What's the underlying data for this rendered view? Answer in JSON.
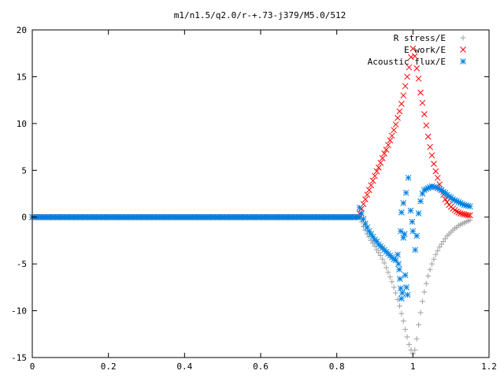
{
  "chart_data": {
    "type": "scatter",
    "title": "m1/n1.5/q2.0/r-+.73-j379/M5.0/512",
    "xlabel": "",
    "ylabel": "",
    "xlim": [
      0,
      1.2
    ],
    "ylim": [
      -15,
      20
    ],
    "x_ticks": [
      0,
      0.2,
      0.4,
      0.6,
      0.8,
      1,
      1.2
    ],
    "x_tick_labels": [
      "0",
      "0.2",
      "0.4",
      "0.6",
      "0.8",
      "1",
      "1.2"
    ],
    "y_ticks": [
      -15,
      -10,
      -5,
      0,
      5,
      10,
      15,
      20
    ],
    "y_tick_labels": [
      "-15",
      "-10",
      "-5",
      "0",
      "5",
      "10",
      "15",
      "20"
    ],
    "legend_position": "top-right",
    "grid": false,
    "series": [
      {
        "name": "R stress/E",
        "marker": "plus",
        "color": "#a0a0a0",
        "flat": {
          "x_start": 0,
          "x_end": 0.86,
          "step": 0.005,
          "y": 0
        },
        "points": [
          [
            0.86,
            0
          ],
          [
            0.865,
            -0.5
          ],
          [
            0.87,
            -1.0
          ],
          [
            0.875,
            -1.4
          ],
          [
            0.88,
            -1.8
          ],
          [
            0.885,
            -2.1
          ],
          [
            0.89,
            -2.5
          ],
          [
            0.895,
            -2.8
          ],
          [
            0.9,
            -3.1
          ],
          [
            0.905,
            -3.5
          ],
          [
            0.91,
            -3.8
          ],
          [
            0.915,
            -4.1
          ],
          [
            0.92,
            -4.5
          ],
          [
            0.925,
            -4.9
          ],
          [
            0.93,
            -5.4
          ],
          [
            0.935,
            -5.9
          ],
          [
            0.94,
            -6.4
          ],
          [
            0.945,
            -6.9
          ],
          [
            0.95,
            -7.5
          ],
          [
            0.955,
            -8.1
          ],
          [
            0.96,
            -8.8
          ],
          [
            0.965,
            -9.5
          ],
          [
            0.97,
            -10.3
          ],
          [
            0.975,
            -11.1
          ],
          [
            0.98,
            -12.0
          ],
          [
            0.985,
            -12.8
          ],
          [
            0.99,
            -13.6
          ],
          [
            0.995,
            -14.2
          ],
          [
            1.0,
            -14.6
          ],
          [
            1.005,
            -14.2
          ],
          [
            1.01,
            -13.0
          ],
          [
            1.015,
            -11.5
          ],
          [
            1.02,
            -10.2
          ],
          [
            1.025,
            -9.0
          ],
          [
            1.03,
            -8.0
          ],
          [
            1.035,
            -7.1
          ],
          [
            1.04,
            -6.3
          ],
          [
            1.045,
            -5.6
          ],
          [
            1.05,
            -5.0
          ],
          [
            1.055,
            -4.5
          ],
          [
            1.06,
            -4.0
          ],
          [
            1.065,
            -3.6
          ],
          [
            1.07,
            -3.2
          ],
          [
            1.075,
            -2.9
          ],
          [
            1.08,
            -2.6
          ],
          [
            1.085,
            -2.3
          ],
          [
            1.09,
            -2.0
          ],
          [
            1.095,
            -1.8
          ],
          [
            1.1,
            -1.6
          ],
          [
            1.105,
            -1.4
          ],
          [
            1.11,
            -1.2
          ],
          [
            1.115,
            -1.1
          ],
          [
            1.12,
            -0.9
          ],
          [
            1.125,
            -0.8
          ],
          [
            1.13,
            -0.7
          ],
          [
            1.135,
            -0.6
          ],
          [
            1.14,
            -0.5
          ],
          [
            1.145,
            -0.4
          ],
          [
            1.15,
            -0.3
          ]
        ]
      },
      {
        "name": "E work/E",
        "marker": "cross",
        "color": "#ff0000",
        "flat": {
          "x_start": 0,
          "x_end": 0.86,
          "step": 0.005,
          "y": 0
        },
        "points": [
          [
            0.86,
            0.4
          ],
          [
            0.865,
            0.9
          ],
          [
            0.87,
            1.4
          ],
          [
            0.875,
            1.9
          ],
          [
            0.88,
            2.4
          ],
          [
            0.885,
            2.9
          ],
          [
            0.89,
            3.4
          ],
          [
            0.895,
            3.9
          ],
          [
            0.9,
            4.4
          ],
          [
            0.905,
            4.9
          ],
          [
            0.91,
            5.3
          ],
          [
            0.915,
            5.8
          ],
          [
            0.92,
            6.3
          ],
          [
            0.925,
            6.8
          ],
          [
            0.93,
            7.2
          ],
          [
            0.935,
            7.7
          ],
          [
            0.94,
            8.2
          ],
          [
            0.945,
            8.7
          ],
          [
            0.95,
            9.3
          ],
          [
            0.955,
            9.9
          ],
          [
            0.96,
            10.6
          ],
          [
            0.965,
            11.3
          ],
          [
            0.97,
            12.1
          ],
          [
            0.975,
            13.0
          ],
          [
            0.98,
            14.0
          ],
          [
            0.985,
            15.0
          ],
          [
            0.99,
            16.0
          ],
          [
            0.995,
            17.1
          ],
          [
            1.0,
            18.0
          ],
          [
            1.005,
            17.2
          ],
          [
            1.01,
            15.9
          ],
          [
            1.015,
            14.8
          ],
          [
            1.02,
            13.3
          ],
          [
            1.025,
            12.2
          ],
          [
            1.03,
            11.0
          ],
          [
            1.035,
            9.8
          ],
          [
            1.04,
            8.6
          ],
          [
            1.045,
            7.5
          ],
          [
            1.05,
            6.6
          ],
          [
            1.055,
            5.7
          ],
          [
            1.06,
            4.9
          ],
          [
            1.065,
            4.2
          ],
          [
            1.07,
            3.5
          ],
          [
            1.075,
            2.9
          ],
          [
            1.08,
            2.4
          ],
          [
            1.085,
            1.9
          ],
          [
            1.09,
            1.6
          ],
          [
            1.095,
            1.3
          ],
          [
            1.1,
            1.1
          ],
          [
            1.105,
            0.9
          ],
          [
            1.11,
            0.75
          ],
          [
            1.115,
            0.6
          ],
          [
            1.12,
            0.5
          ],
          [
            1.125,
            0.4
          ],
          [
            1.13,
            0.35
          ],
          [
            1.135,
            0.3
          ],
          [
            1.14,
            0.25
          ],
          [
            1.145,
            0.2
          ],
          [
            1.15,
            0.2
          ]
        ]
      },
      {
        "name": "Acoustic flux/E",
        "marker": "star",
        "color": "#0080e0",
        "flat": {
          "x_start": 0,
          "x_end": 0.86,
          "step": 0.005,
          "y": 0
        },
        "points": [
          [
            0.86,
            1.0
          ],
          [
            0.865,
            0.4
          ],
          [
            0.87,
            -0.2
          ],
          [
            0.875,
            -0.7
          ],
          [
            0.88,
            -1.1
          ],
          [
            0.885,
            -1.5
          ],
          [
            0.89,
            -1.8
          ],
          [
            0.895,
            -2.1
          ],
          [
            0.9,
            -2.4
          ],
          [
            0.905,
            -2.6
          ],
          [
            0.91,
            -2.9
          ],
          [
            0.915,
            -3.1
          ],
          [
            0.92,
            -3.3
          ],
          [
            0.925,
            -3.5
          ],
          [
            0.93,
            -3.7
          ],
          [
            0.935,
            -3.9
          ],
          [
            0.94,
            -4.1
          ],
          [
            0.945,
            -4.3
          ],
          [
            0.95,
            -4.5
          ],
          [
            0.955,
            -4.6
          ],
          [
            0.96,
            -4.0
          ],
          [
            0.962,
            -5.0
          ],
          [
            0.964,
            -5.6
          ],
          [
            0.966,
            -6.6
          ],
          [
            0.968,
            -7.6
          ],
          [
            0.97,
            -8.7
          ],
          [
            0.972,
            -8.1
          ],
          [
            0.975,
            -2.2
          ],
          [
            0.978,
            -1.8
          ],
          [
            0.98,
            -6.2
          ],
          [
            0.983,
            -7.5
          ],
          [
            0.986,
            -8.3
          ],
          [
            0.968,
            -1.5
          ],
          [
            0.97,
            0.5
          ],
          [
            0.975,
            1.5
          ],
          [
            0.982,
            2.6
          ],
          [
            0.988,
            4.2
          ],
          [
            0.994,
            0.7
          ],
          [
            0.998,
            -0.5
          ],
          [
            1.0,
            -1.5
          ],
          [
            1.006,
            -3.5
          ],
          [
            1.01,
            -2.0
          ],
          [
            1.015,
            0.4
          ],
          [
            1.02,
            1.7
          ],
          [
            1.025,
            2.5
          ],
          [
            1.03,
            2.9
          ],
          [
            1.035,
            3.0
          ],
          [
            1.04,
            3.1
          ],
          [
            1.045,
            3.2
          ],
          [
            1.05,
            3.3
          ],
          [
            1.055,
            3.2
          ],
          [
            1.06,
            3.2
          ],
          [
            1.065,
            3.1
          ],
          [
            1.07,
            3.0
          ],
          [
            1.075,
            2.9
          ],
          [
            1.08,
            2.7
          ],
          [
            1.085,
            2.6
          ],
          [
            1.09,
            2.4
          ],
          [
            1.095,
            2.2
          ],
          [
            1.1,
            2.1
          ],
          [
            1.105,
            1.9
          ],
          [
            1.11,
            1.8
          ],
          [
            1.115,
            1.7
          ],
          [
            1.12,
            1.6
          ],
          [
            1.125,
            1.5
          ],
          [
            1.13,
            1.4
          ],
          [
            1.135,
            1.3
          ],
          [
            1.14,
            1.25
          ],
          [
            1.145,
            1.2
          ],
          [
            1.15,
            1.15
          ]
        ]
      }
    ]
  }
}
